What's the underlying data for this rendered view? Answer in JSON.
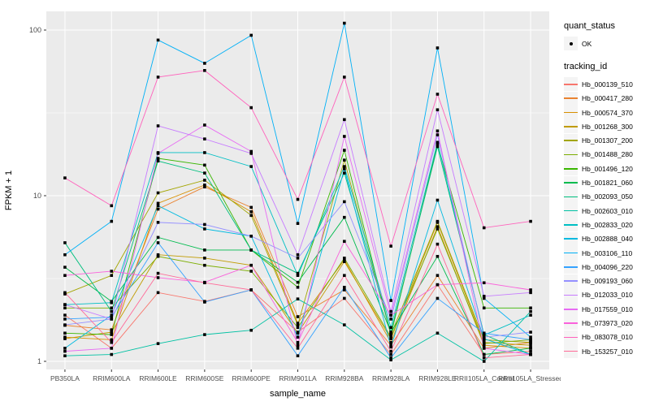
{
  "figure": {
    "background": "#FFFFFF",
    "panel_background": "#EBEBEB",
    "grid_color": "#FFFFFF",
    "tick_color": "#333333",
    "tick_label_color": "#4D4D4D",
    "axis_title_color": "#000000",
    "point_color": "#000000",
    "legend_key_background": "#F4F4F4"
  },
  "chart_data": {
    "type": "line",
    "title": "",
    "xlabel": "sample_name",
    "ylabel": "FPKM + 1",
    "y_scale": "log10",
    "ylim": [
      0.894,
      129
    ],
    "y_tick_values": [
      1,
      10,
      100
    ],
    "y_tick_labels": [
      "1",
      "10",
      "100"
    ],
    "y_minor_values": [
      3.1623,
      31.623
    ],
    "grid": true,
    "legend_position": "right",
    "categories": [
      "PB350LA",
      "RRIM600LA",
      "RRIM600LE",
      "RRIM600SE",
      "RRIM600PE",
      "RRIM901LA",
      "RRIM928BA",
      "RRIM928LA",
      "RRIM928LE",
      "RRII105LA_Control",
      "RRII105LA_Stressed"
    ],
    "series": [
      {
        "name": "Hb_000139_510",
        "color": "#F8766D",
        "values": [
          1.9,
          1.2,
          2.6,
          2.3,
          2.7,
          1.5,
          2.4,
          1.1,
          2.9,
          1.1,
          1.15
        ]
      },
      {
        "name": "Hb_000417_280",
        "color": "#EA8331",
        "values": [
          1.65,
          1.55,
          8.3,
          11.3,
          8.5,
          1.86,
          2.7,
          1.25,
          3.3,
          1.2,
          1.3
        ]
      },
      {
        "name": "Hb_000574_370",
        "color": "#D89000",
        "values": [
          1.4,
          1.35,
          9.0,
          11.6,
          8.0,
          1.7,
          4.1,
          1.3,
          6.5,
          1.25,
          1.2
        ]
      },
      {
        "name": "Hb_001268_300",
        "color": "#C09B00",
        "values": [
          1.37,
          1.5,
          4.4,
          4.2,
          3.8,
          1.48,
          4.0,
          1.37,
          6.9,
          1.3,
          1.25
        ]
      },
      {
        "name": "Hb_001307_200",
        "color": "#A3A500",
        "values": [
          2.55,
          3.3,
          10.4,
          12.4,
          7.6,
          1.66,
          16.4,
          1.45,
          7.0,
          1.35,
          1.3
        ]
      },
      {
        "name": "Hb_001488_280",
        "color": "#7CAE00",
        "values": [
          2.1,
          2.1,
          4.3,
          3.8,
          3.5,
          1.6,
          4.2,
          1.4,
          6.3,
          1.28,
          1.35
        ]
      },
      {
        "name": "Hb_001496_120",
        "color": "#39B600",
        "values": [
          1.48,
          1.45,
          16.8,
          15.3,
          4.7,
          2.8,
          18.8,
          1.45,
          20.5,
          2.1,
          2.1
        ]
      },
      {
        "name": "Hb_001821_060",
        "color": "#00BB4E",
        "values": [
          3.7,
          2.3,
          5.6,
          4.7,
          4.7,
          3.0,
          7.4,
          1.5,
          4.3,
          1.1,
          1.2
        ]
      },
      {
        "name": "Hb_002093_050",
        "color": "#00BF7D",
        "values": [
          5.2,
          2.0,
          16.2,
          13.7,
          4.7,
          3.4,
          13.7,
          1.5,
          19.8,
          1.45,
          1.1
        ]
      },
      {
        "name": "Hb_002603_010",
        "color": "#00C1A3",
        "values": [
          1.08,
          1.1,
          1.28,
          1.45,
          1.54,
          2.38,
          1.66,
          1.02,
          1.48,
          1.0,
          2.0
        ]
      },
      {
        "name": "Hb_002833_020",
        "color": "#00BFC4",
        "values": [
          2.2,
          2.26,
          18.2,
          18.2,
          15.0,
          3.3,
          15.0,
          1.6,
          21.0,
          1.44,
          1.9
        ]
      },
      {
        "name": "Hb_002888_040",
        "color": "#00BAE0",
        "values": [
          1.2,
          1.9,
          8.7,
          6.3,
          5.7,
          1.4,
          14.5,
          1.22,
          9.4,
          1.37,
          1.1
        ]
      },
      {
        "name": "Hb_003106_110",
        "color": "#00B0F6",
        "values": [
          4.4,
          7.0,
          87,
          63,
          93,
          6.8,
          110,
          2.33,
          78,
          2.4,
          1.4
        ]
      },
      {
        "name": "Hb_004096_220",
        "color": "#35A2FF",
        "values": [
          1.8,
          1.85,
          5.2,
          2.28,
          2.7,
          1.08,
          2.8,
          1.05,
          2.4,
          1.48,
          1.35
        ]
      },
      {
        "name": "Hb_009193_060",
        "color": "#9590FF",
        "values": [
          1.66,
          1.8,
          6.9,
          6.7,
          5.7,
          4.2,
          9.2,
          1.8,
          23.3,
          1.4,
          1.5
        ]
      },
      {
        "name": "Hb_012033_010",
        "color": "#C77CFF",
        "values": [
          2.2,
          1.8,
          26.4,
          22.0,
          18.0,
          4.4,
          28.8,
          2.0,
          33.0,
          2.47,
          2.6
        ]
      },
      {
        "name": "Hb_017559_010",
        "color": "#E76BF3",
        "values": [
          1.15,
          1.2,
          18.0,
          26.7,
          18.5,
          1.25,
          22.8,
          1.9,
          24.6,
          1.2,
          1.1
        ]
      },
      {
        "name": "Hb_073973_020",
        "color": "#FA62DB",
        "values": [
          3.3,
          3.5,
          3.2,
          3.0,
          3.8,
          1.3,
          5.3,
          1.9,
          2.9,
          2.98,
          2.7
        ]
      },
      {
        "name": "Hb_083078_010",
        "color": "#FF62BC",
        "values": [
          12.8,
          8.7,
          52,
          57,
          34,
          9.5,
          52,
          4.96,
          41,
          6.4,
          7.0
        ]
      },
      {
        "name": "Hb_153257_010",
        "color": "#FF6A98",
        "values": [
          2.6,
          1.3,
          3.4,
          2.98,
          2.7,
          1.2,
          3.3,
          1.15,
          5.1,
          1.05,
          1.1
        ]
      }
    ],
    "legend": {
      "quant_status_title": "quant_status",
      "quant_status_items": [
        {
          "label": "OK"
        }
      ],
      "tracking_id_title": "tracking_id"
    }
  }
}
